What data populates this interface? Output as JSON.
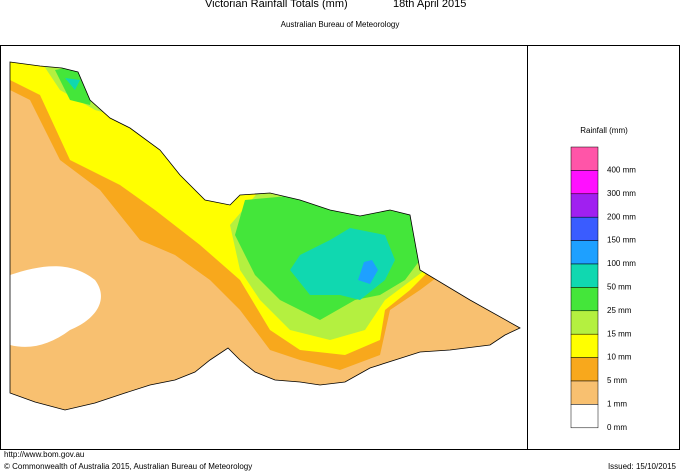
{
  "header": {
    "title": "Victorian Rainfall Totals (mm)",
    "date": "18th April 2015",
    "subtitle": "Australian Bureau of Meteorology"
  },
  "legend": {
    "title": "Rainfall (mm)",
    "labels": [
      "400 mm",
      "300 mm",
      "200 mm",
      "150 mm",
      "100 mm",
      "50 mm",
      "25 mm",
      "15 mm",
      "10 mm",
      "5 mm",
      "1 mm",
      "0 mm"
    ],
    "colors": [
      "#ff55a8",
      "#ff10ff",
      "#a020f0",
      "#3a5cff",
      "#1ea0ff",
      "#10d8b0",
      "#44e63a",
      "#b4f040",
      "#ffff00",
      "#f8a81c",
      "#f8c070",
      "#ffffff"
    ]
  },
  "footer": {
    "url": "http://www.bom.gov.au",
    "copyright": "© Commonwealth of Australia 2015, Australian Bureau of Meteorology",
    "issued": "Issued: 15/10/2015"
  }
}
